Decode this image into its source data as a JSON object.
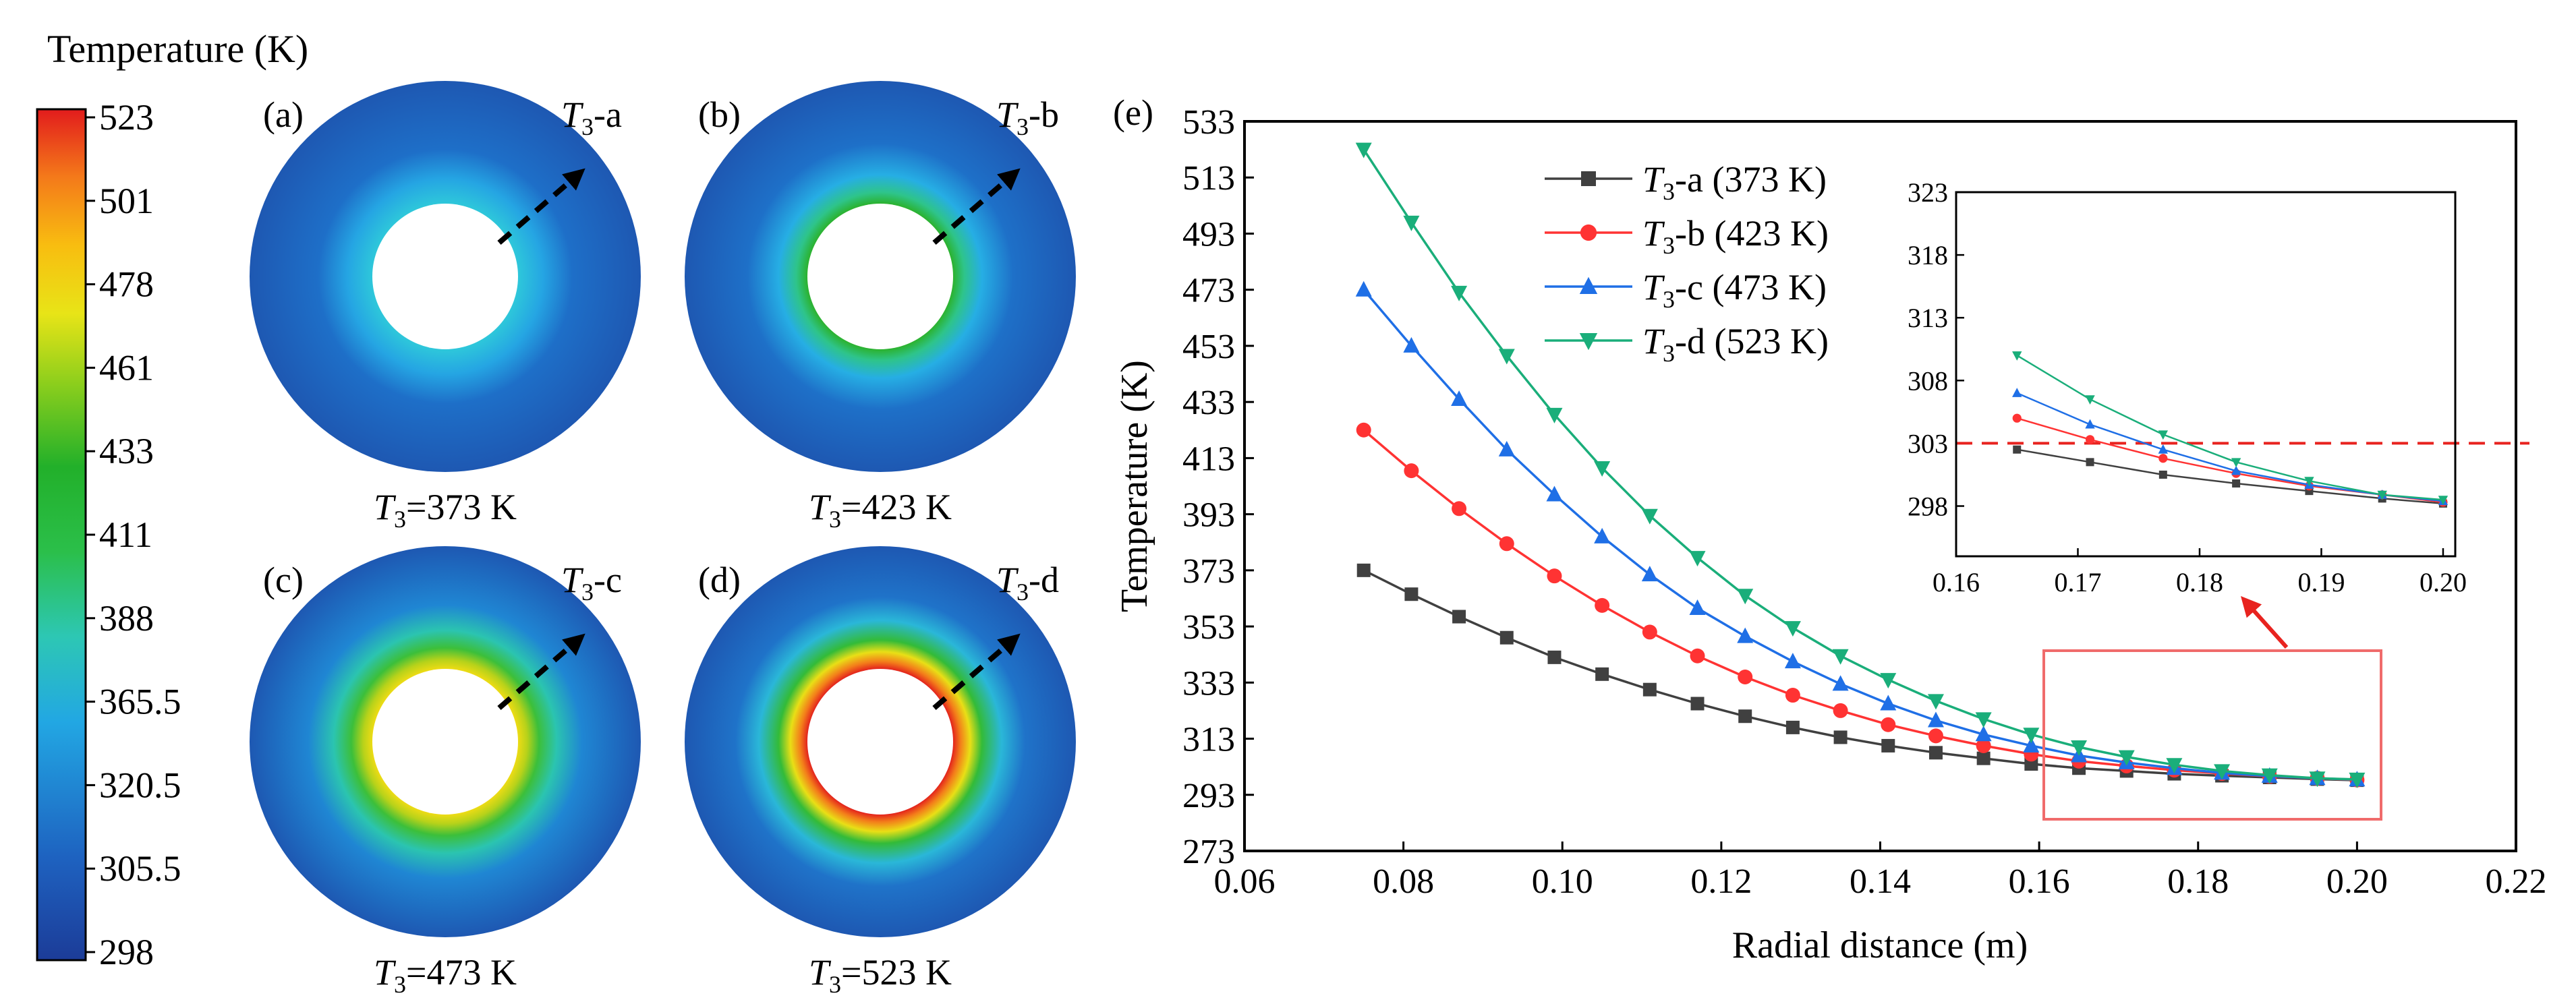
{
  "colorbar": {
    "title": "Temperature (K)",
    "ticks": [
      "523",
      "501",
      "478",
      "461",
      "433",
      "411",
      "388",
      "365.5",
      "320.5",
      "305.5",
      "298"
    ],
    "tick_values": [
      523,
      501,
      478,
      461,
      433,
      411,
      388,
      365.5,
      320.5,
      305.5,
      298
    ],
    "colors": [
      "#1e3f9c",
      "#1e6fc8",
      "#24b3e6",
      "#2ec59a",
      "#22b02a",
      "#7cc81e",
      "#e3e317",
      "#f7c00e",
      "#f6891b",
      "#ed3d1a",
      "#e21f1f"
    ]
  },
  "panels": [
    {
      "label": "(a)",
      "arrow_var": "T",
      "arrow_sub": "3",
      "arrow_suffix": "-a",
      "caption_var": "T",
      "caption_sub": "3",
      "caption_value": "=373 K",
      "inner_temp": 373
    },
    {
      "label": "(b)",
      "arrow_var": "T",
      "arrow_sub": "3",
      "arrow_suffix": "-b",
      "caption_var": "T",
      "caption_sub": "3",
      "caption_value": "=423 K",
      "inner_temp": 423
    },
    {
      "label": "(c)",
      "arrow_var": "T",
      "arrow_sub": "3",
      "arrow_suffix": "-c",
      "caption_var": "T",
      "caption_sub": "3",
      "caption_value": "=473 K",
      "inner_temp": 473
    },
    {
      "label": "(d)",
      "arrow_var": "T",
      "arrow_sub": "3",
      "arrow_suffix": "-d",
      "caption_var": "T",
      "caption_sub": "3",
      "caption_value": "=523 K",
      "inner_temp": 523
    }
  ],
  "chart_data": {
    "type": "line",
    "panel_label": "(e)",
    "xlabel": "Radial distance (m)",
    "ylabel": "Temperature (K)",
    "xlim": [
      0.06,
      0.22
    ],
    "ylim": [
      273,
      533
    ],
    "xticks": [
      "0.06",
      "0.08",
      "0.10",
      "0.12",
      "0.14",
      "0.16",
      "0.18",
      "0.20",
      "0.22"
    ],
    "yticks": [
      "273",
      "293",
      "313",
      "333",
      "353",
      "373",
      "393",
      "413",
      "433",
      "453",
      "473",
      "493",
      "513",
      "533"
    ],
    "x": [
      0.075,
      0.081,
      0.087,
      0.093,
      0.099,
      0.105,
      0.111,
      0.117,
      0.123,
      0.129,
      0.135,
      0.141,
      0.147,
      0.153,
      0.159,
      0.165,
      0.171,
      0.177,
      0.183,
      0.189,
      0.195,
      0.2
    ],
    "series": [
      {
        "name_var": "T",
        "name_sub": "3",
        "name_rest": "-a (373 K)",
        "color": "#404040",
        "marker": "square",
        "values": [
          373,
          364.5,
          356.5,
          349,
          342,
          336,
          330.5,
          325.5,
          321,
          317,
          313.5,
          310.5,
          308,
          306,
          304,
          302.5,
          301.5,
          300.5,
          299.8,
          299.2,
          298.6,
          298.2
        ]
      },
      {
        "name_var": "T",
        "name_sub": "3",
        "name_rest": "-b (423 K)",
        "color": "#ff3333",
        "marker": "circle",
        "values": [
          423,
          408.5,
          395,
          382.5,
          371,
          360.5,
          351,
          342.5,
          335,
          328.5,
          323,
          318,
          314,
          310.5,
          307.5,
          305,
          303.3,
          301.8,
          300.6,
          299.6,
          298.9,
          298.3
        ]
      },
      {
        "name_var": "T",
        "name_sub": "3",
        "name_rest": "-c (473 K)",
        "color": "#1f6fe6",
        "marker": "triangle-up",
        "values": [
          473,
          453,
          434,
          416,
          400,
          385,
          371.5,
          359.5,
          349.5,
          340.5,
          332.5,
          325.5,
          319.5,
          314.5,
          310.5,
          307,
          304.5,
          302.5,
          300.8,
          299.7,
          298.9,
          298.4
        ]
      },
      {
        "name_var": "T",
        "name_sub": "3",
        "name_rest": "-d (523 K)",
        "color": "#1aae7a",
        "marker": "triangle-down",
        "values": [
          523,
          497,
          472,
          449.5,
          428.5,
          409.5,
          392.5,
          377.5,
          364,
          352.5,
          342.5,
          334,
          326.5,
          320,
          314.5,
          310,
          306.5,
          303.7,
          301.5,
          300,
          298.9,
          298.5
        ]
      }
    ],
    "inset": {
      "xlim": [
        0.16,
        0.201
      ],
      "ylim": [
        294,
        323
      ],
      "xticks": [
        "0.16",
        "0.17",
        "0.18",
        "0.19",
        "0.20"
      ],
      "yticks": [
        "298",
        "303",
        "308",
        "313",
        "318",
        "323"
      ],
      "reference_line": 303
    }
  }
}
